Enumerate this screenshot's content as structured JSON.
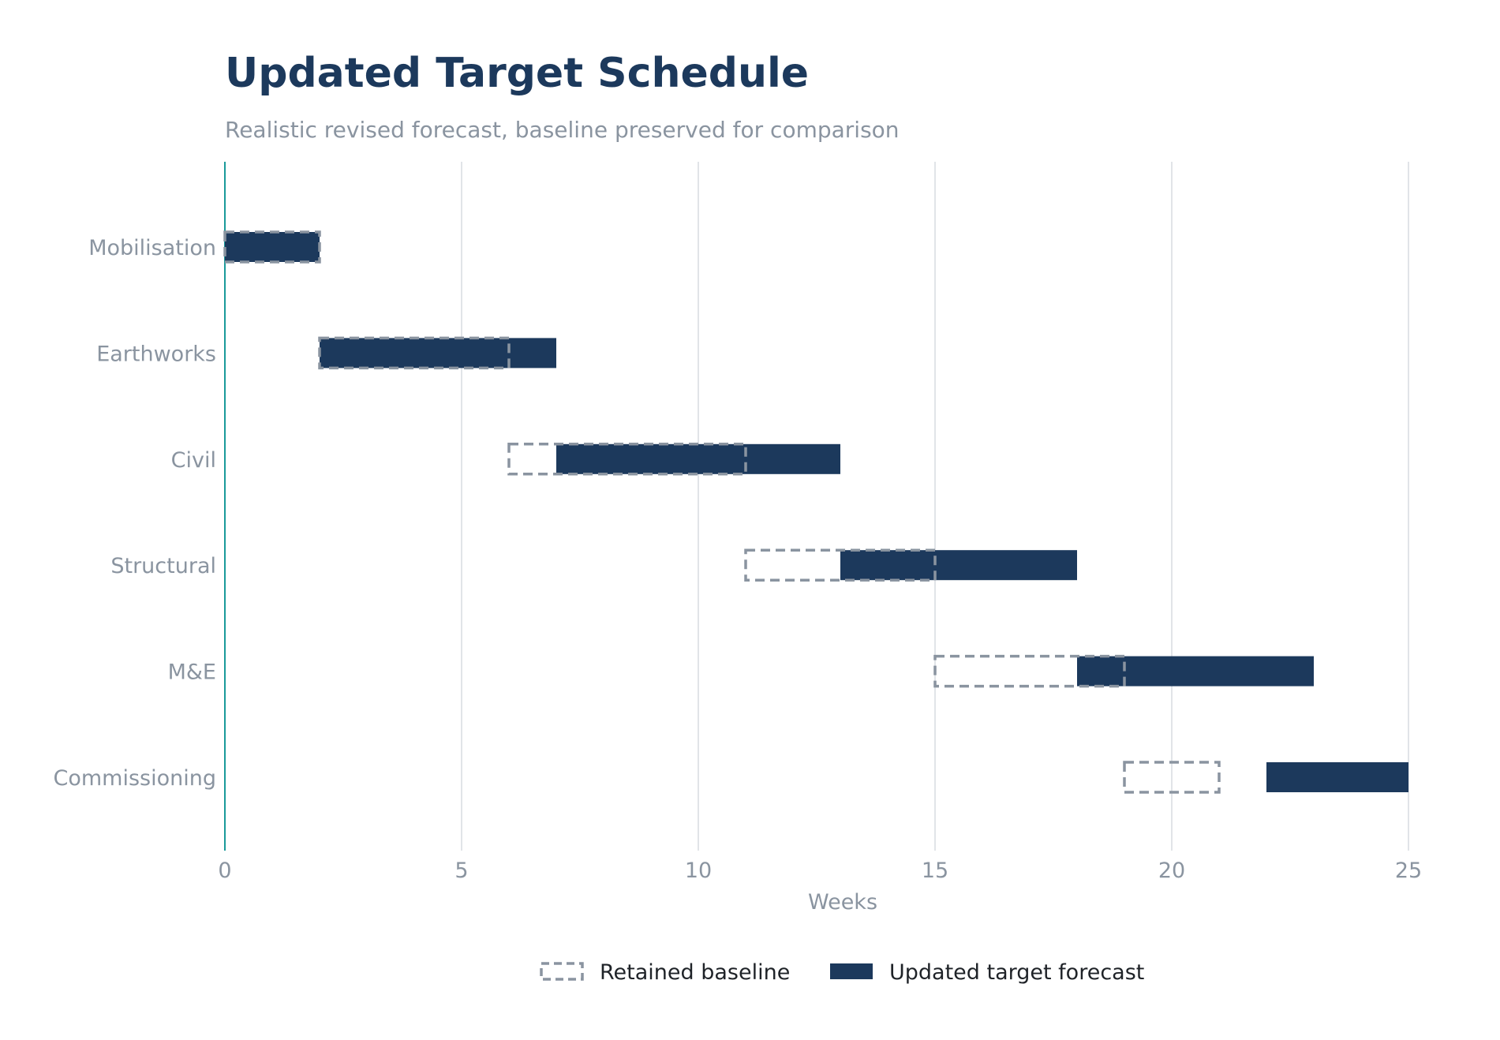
{
  "chart_data": {
    "type": "bar",
    "orientation": "horizontal-gantt",
    "title": "Updated Target Schedule",
    "subtitle": "Realistic revised forecast, baseline preserved for comparison",
    "xlabel": "Weeks",
    "ylabel": "",
    "xlim": [
      0,
      25
    ],
    "xticks": [
      0,
      5,
      10,
      15,
      20,
      25
    ],
    "grid": "vertical",
    "legend_position": "bottom-center",
    "categories": [
      "Mobilisation",
      "Earthworks",
      "Civil",
      "Structural",
      "M&E",
      "Commissioning"
    ],
    "series": [
      {
        "name": "Retained baseline",
        "style": "dashed-outline",
        "color": "#8a94a0",
        "start": [
          0,
          2,
          6,
          11,
          15,
          19
        ],
        "end": [
          2,
          6,
          11,
          15,
          19,
          21
        ]
      },
      {
        "name": "Updated target forecast",
        "style": "filled",
        "color": "#1c395c",
        "start": [
          0,
          2,
          7,
          13,
          18,
          22
        ],
        "end": [
          2,
          7,
          13,
          18,
          23,
          25
        ]
      }
    ]
  },
  "colors": {
    "title": "#1c395c",
    "subtitle": "#8a94a0",
    "axis_text": "#8a94a0",
    "grid": "#e1e4e8",
    "y_axis_line": "#1a9a9a",
    "legend_text": "#1f2328"
  }
}
